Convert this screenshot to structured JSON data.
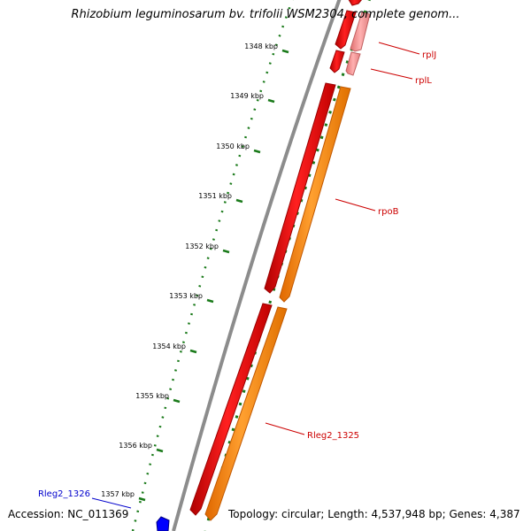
{
  "title": "Rhizobium leguminosarum bv. trifolii WSM2304, complete genom...",
  "accession_text": "Accession: NC_011369",
  "info_text": "Topology: circular; Length: 4,537,948 bp; Genes: 4,387",
  "colors": {
    "backbone": "#8c8c8c",
    "gene_red": "#ff0000",
    "gene_pink": "#f08080",
    "gene_orange": "#ff8c00",
    "gene_blue": "#0000ff",
    "tick_green": "#1a7a1a",
    "label_red": "#cc0000",
    "label_blue": "#0000cc"
  },
  "ticks": [
    {
      "label": "1348 kbp"
    },
    {
      "label": "1349 kbp"
    },
    {
      "label": "1350 kbp"
    },
    {
      "label": "1351 kbp"
    },
    {
      "label": "1352 kbp"
    },
    {
      "label": "1353 kbp"
    },
    {
      "label": "1354 kbp"
    },
    {
      "label": "1355 kbp"
    },
    {
      "label": "1356 kbp"
    },
    {
      "label": "1357 kbp"
    }
  ],
  "gene_labels": [
    {
      "text": "rplJ",
      "color": "red"
    },
    {
      "text": "rplL",
      "color": "red"
    },
    {
      "text": "rpoB",
      "color": "red"
    },
    {
      "text": "Rleg2_1325",
      "color": "red"
    },
    {
      "text": "Rleg2_1326",
      "color": "blue"
    }
  ]
}
